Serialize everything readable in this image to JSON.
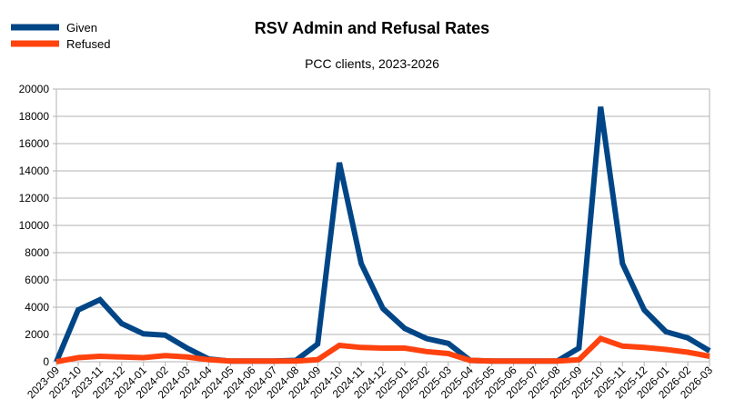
{
  "chart_data": {
    "type": "line",
    "title": "RSV Admin and Refusal Rates",
    "subtitle": "PCC clients, 2023-2026",
    "xlabel": "",
    "ylabel": "",
    "ylim": [
      0,
      20000
    ],
    "yticks": [
      0,
      2000,
      4000,
      6000,
      8000,
      10000,
      12000,
      14000,
      16000,
      18000,
      20000
    ],
    "grid": true,
    "legend_placement": "top-left",
    "categories": [
      "2023-09",
      "2023-10",
      "2023-11",
      "2023-12",
      "2024-01",
      "2024-02",
      "2024-03",
      "2024-04",
      "2024-05",
      "2024-06",
      "2024-07",
      "2024-08",
      "2024-09",
      "2024-10",
      "2024-11",
      "2024-12",
      "2025-01",
      "2025-02",
      "2025-03",
      "2025-04",
      "2025-05",
      "2025-06",
      "2025-07",
      "2025-08",
      "2025-09",
      "2025-10",
      "2025-11",
      "2025-12",
      "2026-01",
      "2026-02",
      "2026-03"
    ],
    "series": [
      {
        "name": "Given",
        "color": "#004586",
        "values": [
          0,
          3800,
          4550,
          2800,
          2050,
          1950,
          1000,
          200,
          50,
          50,
          50,
          100,
          1300,
          14600,
          7200,
          3900,
          2450,
          1700,
          1350,
          100,
          50,
          50,
          50,
          50,
          1000,
          18700,
          7200,
          3800,
          2200,
          1750,
          800
        ]
      },
      {
        "name": "Refused",
        "color": "#ff420e",
        "values": [
          0,
          300,
          400,
          350,
          300,
          450,
          350,
          150,
          50,
          50,
          50,
          50,
          150,
          1200,
          1050,
          1000,
          1000,
          750,
          600,
          100,
          50,
          50,
          50,
          50,
          150,
          1700,
          1150,
          1050,
          900,
          700,
          400
        ]
      }
    ]
  }
}
